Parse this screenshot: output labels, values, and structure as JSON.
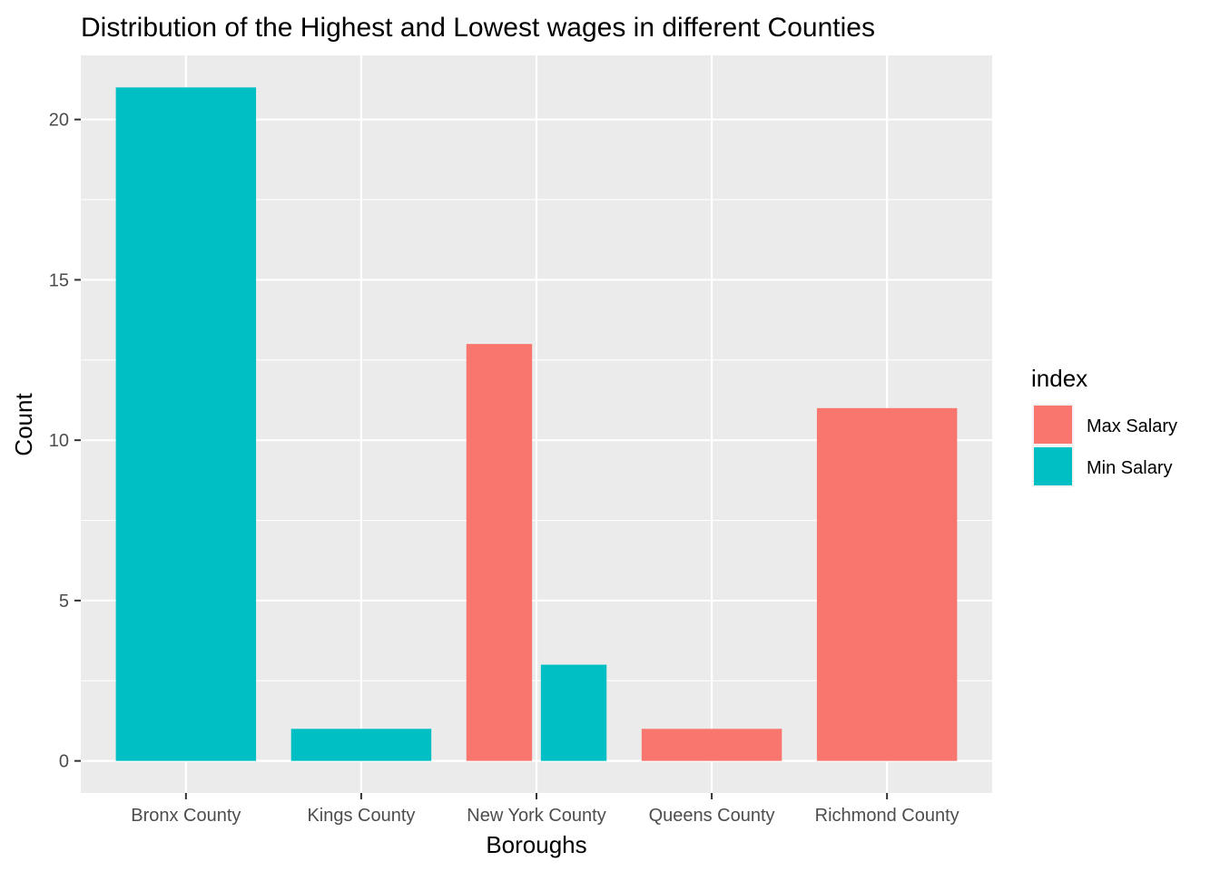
{
  "chart_data": {
    "type": "bar",
    "title": "Distribution of the Highest and Lowest wages in different Counties",
    "xlabel": "Boroughs",
    "ylabel": "Count",
    "categories": [
      "Bronx County",
      "Kings County",
      "New York County",
      "Queens County",
      "Richmond County"
    ],
    "series": [
      {
        "name": "Max Salary",
        "color": "#F8766D",
        "values": [
          0,
          0,
          13,
          1,
          11
        ]
      },
      {
        "name": "Min Salary",
        "color": "#00BFC4",
        "values": [
          21,
          1,
          3,
          0,
          0
        ]
      }
    ],
    "ylim": [
      -1,
      22
    ],
    "yticks": [
      0,
      5,
      10,
      15,
      20
    ],
    "legend": {
      "title": "index",
      "placement": "right"
    },
    "grid": true,
    "panel_background": "#EBEBEB"
  }
}
